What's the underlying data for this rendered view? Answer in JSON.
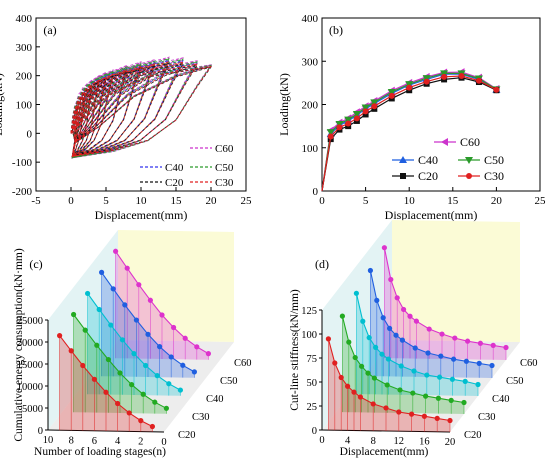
{
  "chart_data": [
    {
      "panel": "(a)",
      "type": "line",
      "variant": "hysteresis",
      "xlabel": "Displacement(mm)",
      "ylabel": "Loading(kN)",
      "xlim": [
        -5,
        25
      ],
      "ylim": [
        -200,
        400
      ],
      "xticks": [
        "-5",
        "0",
        "5",
        "10",
        "15",
        "20",
        "25"
      ],
      "yticks": [
        "-200",
        "-100",
        "0",
        "100",
        "200",
        "300",
        "400"
      ],
      "grid": false,
      "legend_position": "bottom-right",
      "loop_peak_displacements": [
        1,
        2,
        3,
        4,
        5,
        6,
        8,
        10,
        12,
        14,
        16,
        18,
        20
      ],
      "series": [
        {
          "name": "C60",
          "color": "#cc33cc",
          "dash": "3,2",
          "peak_loads": [
            115,
            160,
            185,
            200,
            212,
            220,
            236,
            248,
            256,
            264,
            262,
            252,
            238
          ],
          "trough_load": -85
        },
        {
          "name": "C40",
          "color": "#3333ee",
          "dash": "3,2",
          "peak_loads": [
            105,
            148,
            172,
            190,
            200,
            210,
            226,
            238,
            246,
            254,
            252,
            244,
            234
          ],
          "trough_load": -82
        },
        {
          "name": "C50",
          "color": "#2a9a2a",
          "dash": "3,2",
          "peak_loads": [
            110,
            152,
            178,
            195,
            206,
            215,
            231,
            243,
            251,
            259,
            257,
            248,
            236
          ],
          "trough_load": -84
        },
        {
          "name": "C20",
          "color": "#111111",
          "dash": "3,2",
          "peak_loads": [
            95,
            138,
            162,
            180,
            190,
            200,
            216,
            228,
            236,
            243,
            242,
            236,
            230
          ],
          "trough_load": -78
        },
        {
          "name": "C30",
          "color": "#e02020",
          "dash": "3,2",
          "peak_loads": [
            100,
            143,
            167,
            185,
            195,
            205,
            221,
            233,
            241,
            248,
            247,
            240,
            232
          ],
          "trough_load": -80
        }
      ]
    },
    {
      "panel": "(b)",
      "type": "line",
      "variant": "skeleton",
      "xlabel": "Displacement(mm)",
      "ylabel": "Loading(kN)",
      "xlim": [
        0,
        25
      ],
      "ylim": [
        0,
        400
      ],
      "xticks": [
        "0",
        "5",
        "10",
        "15",
        "20",
        "25"
      ],
      "yticks": [
        "0",
        "100",
        "200",
        "300",
        "400"
      ],
      "grid": false,
      "legend_position": "bottom-right",
      "x": [
        0,
        1,
        2,
        3,
        4,
        5,
        6,
        8,
        10,
        12,
        14,
        16,
        18,
        20
      ],
      "series": [
        {
          "name": "C60",
          "color": "#cc33cc",
          "marker": "left-triangle",
          "values": [
            0,
            140,
            158,
            168,
            182,
            196,
            208,
            232,
            250,
            264,
            274,
            275,
            262,
            236
          ]
        },
        {
          "name": "C40",
          "color": "#1f5fe0",
          "marker": "triangle-up",
          "values": [
            0,
            132,
            152,
            162,
            175,
            190,
            202,
            226,
            245,
            258,
            270,
            270,
            258,
            234
          ]
        },
        {
          "name": "C50",
          "color": "#2a9a2a",
          "marker": "triangle-down",
          "values": [
            0,
            136,
            155,
            165,
            178,
            193,
            205,
            229,
            247,
            261,
            272,
            272,
            260,
            235
          ]
        },
        {
          "name": "C20",
          "color": "#111111",
          "marker": "square",
          "values": [
            0,
            120,
            142,
            150,
            162,
            177,
            190,
            214,
            233,
            248,
            258,
            262,
            252,
            233
          ]
        },
        {
          "name": "C30",
          "color": "#e02020",
          "marker": "circle",
          "values": [
            0,
            126,
            147,
            156,
            168,
            184,
            196,
            220,
            239,
            253,
            264,
            266,
            255,
            234
          ]
        }
      ]
    },
    {
      "panel": "(c)",
      "type": "line",
      "variant": "3d-waterfall",
      "xlabel": "Number of loading stages(n)",
      "ylabel": "Cumulative energy consumption(kN·mm)",
      "xlim": [
        10,
        0
      ],
      "zlim": [
        0,
        25000
      ],
      "xticks": [
        "10",
        "8",
        "6",
        "4",
        "2",
        "0"
      ],
      "zticks": [
        "0",
        "5000",
        "10000",
        "15000",
        "20000",
        "25000"
      ],
      "series_labels": [
        "C20",
        "C30",
        "C40",
        "C50",
        "C60"
      ],
      "x": [
        1,
        2,
        3,
        4,
        5,
        6,
        7,
        8,
        9
      ],
      "series": [
        {
          "name": "C20",
          "color": "#e02020",
          "values": [
            1200,
            2500,
            4200,
            6300,
            8800,
            11700,
            14800,
            18100,
            21500
          ]
        },
        {
          "name": "C30",
          "color": "#22aa22",
          "values": [
            1250,
            2600,
            4350,
            6500,
            9100,
            12100,
            15300,
            18700,
            22200
          ]
        },
        {
          "name": "C40",
          "color": "#00bfd0",
          "values": [
            1300,
            2700,
            4500,
            6750,
            9400,
            12500,
            15800,
            19300,
            22900
          ]
        },
        {
          "name": "C50",
          "color": "#1f5fe0",
          "values": [
            1350,
            2800,
            4650,
            6950,
            9700,
            12900,
            16300,
            19900,
            23600
          ]
        },
        {
          "name": "C60",
          "color": "#dd33cc",
          "values": [
            1400,
            2900,
            4800,
            7200,
            10000,
            13300,
            16800,
            20500,
            24300
          ]
        }
      ]
    },
    {
      "panel": "(d)",
      "type": "line",
      "variant": "3d-waterfall",
      "xlabel": "Displacement(mm)",
      "ylabel": "Cut-line stiffness(kN/mm)",
      "xlim": [
        0,
        20
      ],
      "zlim": [
        0,
        125
      ],
      "xticks": [
        "0",
        "4",
        "8",
        "12",
        "16",
        "20"
      ],
      "zticks": [
        "0",
        "25",
        "50",
        "75",
        "100",
        "125"
      ],
      "series_labels": [
        "C20",
        "C30",
        "C40",
        "C50",
        "C60"
      ],
      "x": [
        1,
        2,
        3,
        4,
        5,
        6,
        8,
        10,
        12,
        14,
        16,
        18,
        20
      ],
      "series": [
        {
          "name": "C20",
          "color": "#e02020",
          "values": [
            95,
            70,
            55,
            46,
            40,
            35,
            28,
            24,
            20,
            18,
            16,
            14,
            12
          ]
        },
        {
          "name": "C30",
          "color": "#22aa22",
          "values": [
            100,
            73,
            57,
            48,
            41,
            36,
            29,
            24,
            21,
            18,
            16,
            14,
            12
          ]
        },
        {
          "name": "C40",
          "color": "#00bfd0",
          "values": [
            105,
            76,
            59,
            49,
            42,
            37,
            30,
            25,
            21,
            19,
            17,
            15,
            12
          ]
        },
        {
          "name": "C50",
          "color": "#1f5fe0",
          "values": [
            110,
            79,
            61,
            50,
            43,
            38,
            30,
            25,
            22,
            19,
            17,
            15,
            13
          ]
        },
        {
          "name": "C60",
          "color": "#dd33cc",
          "values": [
            115,
            82,
            63,
            51,
            44,
            39,
            31,
            26,
            22,
            19,
            17,
            15,
            13
          ]
        }
      ]
    }
  ]
}
